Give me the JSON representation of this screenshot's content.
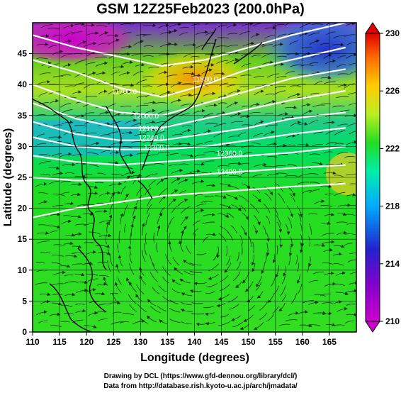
{
  "title": "GSM 12Z25Feb2023 (200.0hPa)",
  "xlabel": "Longitude (degrees)",
  "ylabel": "Latitude  (degrees)",
  "credits": [
    "Drawing by DCL (https://www.gfd-dennou.org/library/dcl/)",
    "Data from http://database.rish.kyoto-u.ac.jp/arch/jmadata/"
  ],
  "chart_data": {
    "type": "heatmap",
    "title": "GSM 12Z25Feb2023 (200.0hPa)",
    "xlabel": "Longitude (degrees)",
    "ylabel": "Latitude  (degrees)",
    "xlim": [
      110,
      170
    ],
    "ylim": [
      0,
      50
    ],
    "x_ticks": [
      110,
      115,
      120,
      125,
      130,
      135,
      140,
      145,
      150,
      155,
      160,
      165
    ],
    "y_ticks": [
      0,
      5,
      10,
      15,
      20,
      25,
      30,
      35,
      40,
      45
    ],
    "colorbar": {
      "min": 210,
      "max": 230,
      "ticks": [
        210,
        214,
        218,
        222,
        226,
        230
      ],
      "colors": [
        "#cc00cc",
        "#3333cc",
        "#00aaff",
        "#00e6a0",
        "#33dd33",
        "#ccee22",
        "#ffcc00",
        "#ff6600",
        "#dd0000"
      ]
    },
    "contour_labels": [
      {
        "text": "11880.0",
        "lon": 142,
        "lat": 40.5
      },
      {
        "text": "11700.0",
        "lon": 127,
        "lat": 38.5
      },
      {
        "text": "12000.0",
        "lon": 131,
        "lat": 34.5
      },
      {
        "text": "12120.0",
        "lon": 132,
        "lat": 32.5
      },
      {
        "text": "12240.0",
        "lon": 132,
        "lat": 31
      },
      {
        "text": "12300.0",
        "lon": 133,
        "lat": 29.5
      },
      {
        "text": "12360.0",
        "lon": 146.5,
        "lat": 28.5
      },
      {
        "text": "12400.0",
        "lon": 146.5,
        "lat": 25.5
      }
    ]
  }
}
